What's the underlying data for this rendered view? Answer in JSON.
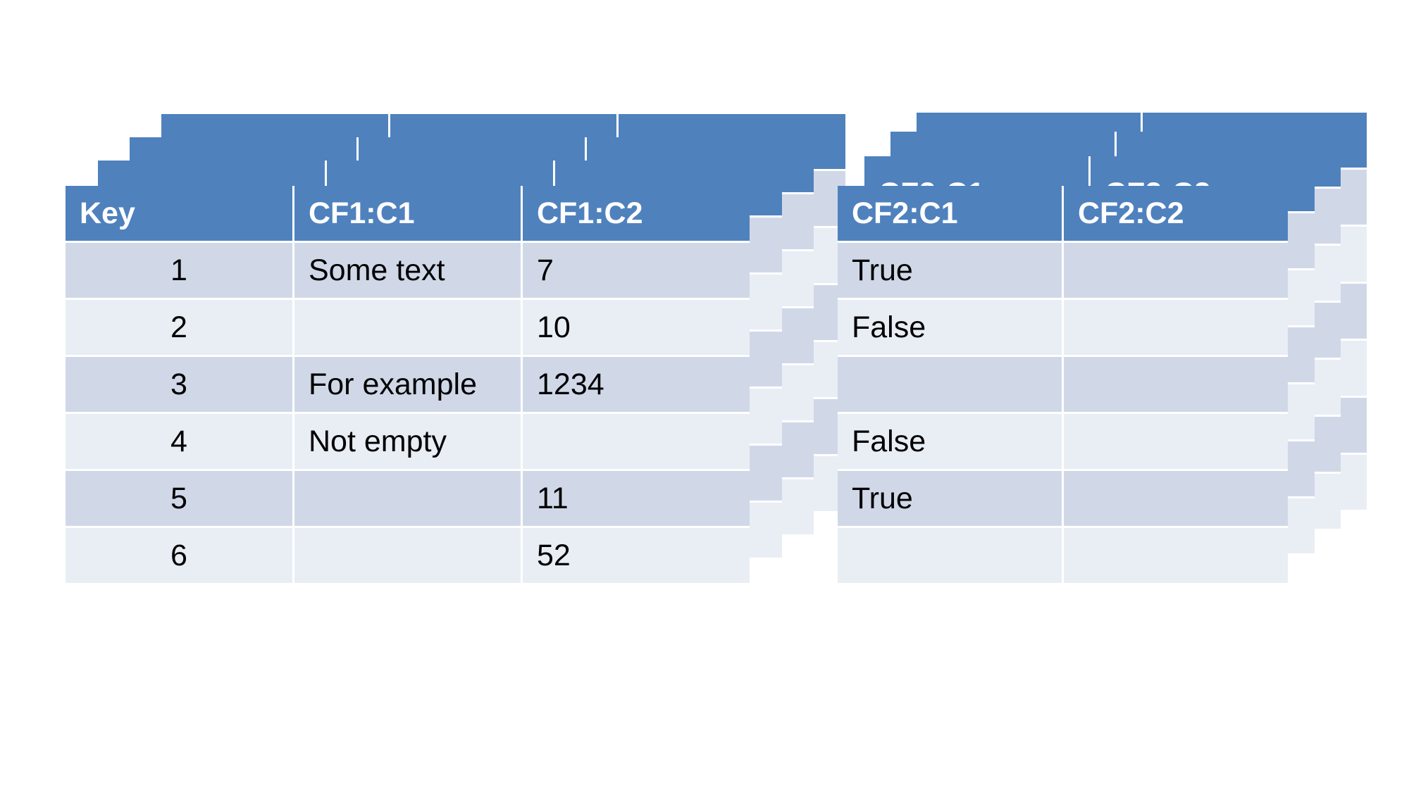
{
  "table_cf1": {
    "headers": [
      "Key",
      "CF1:C1",
      "CF1:C2"
    ],
    "rows": [
      [
        "1",
        "Some text",
        "7"
      ],
      [
        "2",
        "",
        "10"
      ],
      [
        "3",
        "For example",
        "1234"
      ],
      [
        "4",
        "Not empty",
        ""
      ],
      [
        "5",
        "",
        "11"
      ],
      [
        "6",
        "",
        "52"
      ]
    ]
  },
  "table_cf2": {
    "headers": [
      "CF2:C1",
      "CF2:C2"
    ],
    "rows": [
      [
        "True",
        ""
      ],
      [
        "False",
        ""
      ],
      [
        "",
        ""
      ],
      [
        "False",
        ""
      ],
      [
        "True",
        ""
      ],
      [
        "",
        ""
      ]
    ]
  },
  "colors": {
    "header": "#4f81bd",
    "row_dark": "#d0d8e8",
    "row_light": "#e9edf4"
  }
}
